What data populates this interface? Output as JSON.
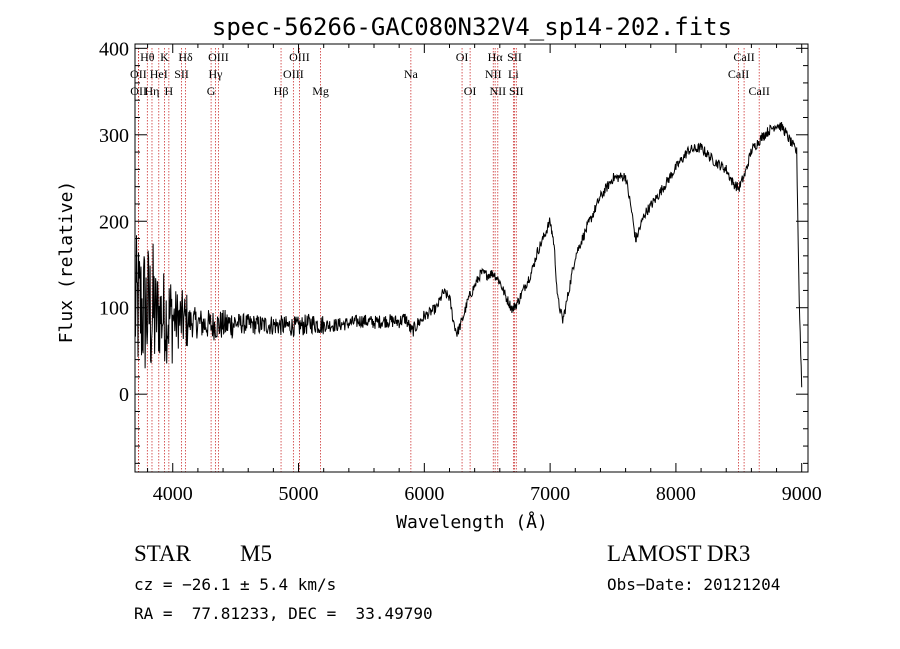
{
  "chart_data": {
    "type": "line",
    "title": "spec-56266-GAC080N32V4_sp14-202.fits",
    "xlabel": "Wavelength (Å)",
    "ylabel": "Flux (relative)",
    "xlim": [
      3700,
      9050
    ],
    "ylim": [
      -90,
      405
    ],
    "xticks": [
      4000,
      5000,
      6000,
      7000,
      8000,
      9000
    ],
    "yticks": [
      0,
      100,
      200,
      300,
      400
    ],
    "line_color": "#000000",
    "marker_color": "#cc3333",
    "spectrum_anchors": [
      [
        3700,
        100
      ],
      [
        3800,
        95
      ],
      [
        3900,
        92
      ],
      [
        4000,
        88
      ],
      [
        4100,
        85
      ],
      [
        4200,
        82
      ],
      [
        4300,
        80
      ],
      [
        4400,
        80
      ],
      [
        4500,
        82
      ],
      [
        4600,
        81
      ],
      [
        4700,
        80
      ],
      [
        4800,
        80
      ],
      [
        4900,
        79
      ],
      [
        5000,
        78
      ],
      [
        5100,
        82
      ],
      [
        5200,
        80
      ],
      [
        5300,
        80
      ],
      [
        5400,
        82
      ],
      [
        5500,
        85
      ],
      [
        5600,
        83
      ],
      [
        5700,
        85
      ],
      [
        5800,
        84
      ],
      [
        5850,
        88
      ],
      [
        5900,
        72
      ],
      [
        5950,
        82
      ],
      [
        6000,
        90
      ],
      [
        6100,
        100
      ],
      [
        6150,
        118
      ],
      [
        6200,
        112
      ],
      [
        6230,
        85
      ],
      [
        6260,
        70
      ],
      [
        6300,
        85
      ],
      [
        6350,
        110
      ],
      [
        6400,
        125
      ],
      [
        6450,
        140
      ],
      [
        6500,
        138
      ],
      [
        6550,
        140
      ],
      [
        6600,
        130
      ],
      [
        6650,
        112
      ],
      [
        6700,
        98
      ],
      [
        6750,
        108
      ],
      [
        6800,
        125
      ],
      [
        6850,
        140
      ],
      [
        6900,
        165
      ],
      [
        6950,
        182
      ],
      [
        7000,
        200
      ],
      [
        7030,
        175
      ],
      [
        7060,
        110
      ],
      [
        7100,
        85
      ],
      [
        7130,
        105
      ],
      [
        7200,
        160
      ],
      [
        7300,
        195
      ],
      [
        7400,
        228
      ],
      [
        7500,
        250
      ],
      [
        7600,
        252
      ],
      [
        7650,
        210
      ],
      [
        7680,
        178
      ],
      [
        7750,
        208
      ],
      [
        7850,
        228
      ],
      [
        8000,
        262
      ],
      [
        8100,
        282
      ],
      [
        8200,
        285
      ],
      [
        8300,
        270
      ],
      [
        8400,
        260
      ],
      [
        8450,
        245
      ],
      [
        8500,
        238
      ],
      [
        8550,
        255
      ],
      [
        8600,
        282
      ],
      [
        8700,
        300
      ],
      [
        8800,
        312
      ],
      [
        8850,
        308
      ],
      [
        8900,
        295
      ],
      [
        8960,
        280
      ],
      [
        8980,
        110
      ],
      [
        9000,
        10
      ]
    ],
    "lines": [
      {
        "label": "Hθ",
        "wavelength": 3798,
        "row": 0
      },
      {
        "label": "OII",
        "wavelength": 3727,
        "row": 1
      },
      {
        "label": "OII",
        "wavelength": 3729,
        "row": 2
      },
      {
        "label": "Hη",
        "wavelength": 3835,
        "row": 2
      },
      {
        "label": "K",
        "wavelength": 3934,
        "row": 0
      },
      {
        "label": "HeI",
        "wavelength": 3889,
        "row": 1
      },
      {
        "label": "SII",
        "wavelength": 4070,
        "row": 1
      },
      {
        "label": "H",
        "wavelength": 3969,
        "row": 2
      },
      {
        "label": "Hδ",
        "wavelength": 4102,
        "row": 0
      },
      {
        "label": "OIII",
        "wavelength": 4363,
        "row": 0
      },
      {
        "label": "Hγ",
        "wavelength": 4340,
        "row": 1
      },
      {
        "label": "G",
        "wavelength": 4305,
        "row": 2
      },
      {
        "label": "OIII",
        "wavelength": 5007,
        "row": 0
      },
      {
        "label": "OIII",
        "wavelength": 4959,
        "row": 1
      },
      {
        "label": "Hβ",
        "wavelength": 4861,
        "row": 2
      },
      {
        "label": "Mg",
        "wavelength": 5175,
        "row": 2
      },
      {
        "label": "Na",
        "wavelength": 5893,
        "row": 1
      },
      {
        "label": "OI",
        "wavelength": 6300,
        "row": 0
      },
      {
        "label": "OI",
        "wavelength": 6364,
        "row": 2
      },
      {
        "label": "Hα",
        "wavelength": 6563,
        "row": 0
      },
      {
        "label": "SII",
        "wavelength": 6717,
        "row": 0
      },
      {
        "label": "NII",
        "wavelength": 6548,
        "row": 1
      },
      {
        "label": "Li",
        "wavelength": 6708,
        "row": 1
      },
      {
        "label": "NII",
        "wavelength": 6584,
        "row": 2
      },
      {
        "label": "SII",
        "wavelength": 6731,
        "row": 2
      },
      {
        "label": "CaII",
        "wavelength": 8542,
        "row": 0
      },
      {
        "label": "CaII",
        "wavelength": 8498,
        "row": 1
      },
      {
        "label": "CaII",
        "wavelength": 8662,
        "row": 2
      }
    ]
  },
  "info": {
    "object_class": "STAR",
    "subclass": "M5",
    "survey": "LAMOST DR3",
    "cz": "cz = −26.1 ± 5.4 km/s",
    "obs_date": "Obs−Date: 20121204",
    "coords": "RA =  77.81233, DEC =  33.49790"
  }
}
